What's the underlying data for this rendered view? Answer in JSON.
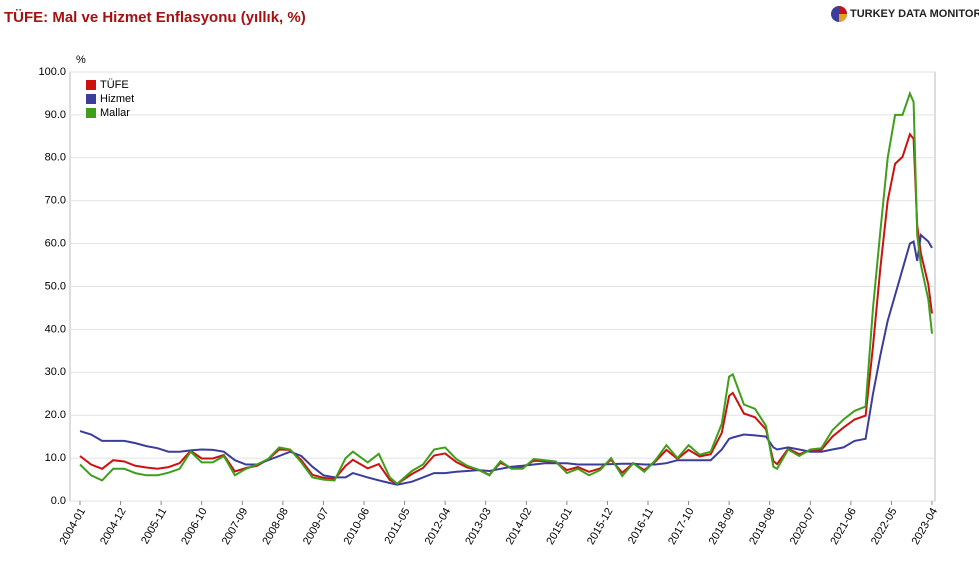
{
  "chart_data": {
    "type": "line",
    "title": "TÜFE: Mal ve Hizmet Enflasyonu (yıllık, %)",
    "source_logo": "TURKEY DATA MONITOR",
    "y_label": "%",
    "grid": true,
    "legend": "top-left",
    "ylim": [
      0,
      100
    ],
    "yticks": [
      {
        "value": 0,
        "label": "0.0"
      },
      {
        "value": 10,
        "label": "10.0"
      },
      {
        "value": 20,
        "label": "20.0"
      },
      {
        "value": 30,
        "label": "30.0"
      },
      {
        "value": 40,
        "label": "40.0"
      },
      {
        "value": 50,
        "label": "50.0"
      },
      {
        "value": 60,
        "label": "60.0"
      },
      {
        "value": 70,
        "label": "70.0"
      },
      {
        "value": 80,
        "label": "80.0"
      },
      {
        "value": 90,
        "label": "90.0"
      },
      {
        "value": 100,
        "label": "100.0"
      }
    ],
    "xticks": [
      "2004-01",
      "2004-12",
      "2005-11",
      "2006-10",
      "2007-09",
      "2008-08",
      "2009-07",
      "2010-06",
      "2011-05",
      "2012-04",
      "2013-03",
      "2014-02",
      "2015-01",
      "2015-12",
      "2016-11",
      "2017-10",
      "2018-09",
      "2019-08",
      "2020-07",
      "2021-06",
      "2022-05",
      "2023-04"
    ],
    "x": [
      "2004-01",
      "2004-04",
      "2004-07",
      "2004-10",
      "2005-01",
      "2005-04",
      "2005-07",
      "2005-10",
      "2006-01",
      "2006-04",
      "2006-07",
      "2006-10",
      "2007-01",
      "2007-04",
      "2007-07",
      "2007-10",
      "2008-01",
      "2008-04",
      "2008-07",
      "2008-10",
      "2009-01",
      "2009-04",
      "2009-07",
      "2009-10",
      "2010-01",
      "2010-03",
      "2010-07",
      "2010-10",
      "2011-01",
      "2011-03",
      "2011-07",
      "2011-10",
      "2012-01",
      "2012-04",
      "2012-07",
      "2012-10",
      "2013-01",
      "2013-04",
      "2013-07",
      "2013-10",
      "2014-01",
      "2014-04",
      "2014-07",
      "2014-10",
      "2015-01",
      "2015-04",
      "2015-07",
      "2015-10",
      "2016-01",
      "2016-04",
      "2016-07",
      "2016-10",
      "2017-01",
      "2017-04",
      "2017-07",
      "2017-10",
      "2018-01",
      "2018-04",
      "2018-07",
      "2018-09",
      "2018-10",
      "2019-01",
      "2019-04",
      "2019-07",
      "2019-09",
      "2019-10",
      "2020-01",
      "2020-04",
      "2020-07",
      "2020-10",
      "2021-01",
      "2021-04",
      "2021-07",
      "2021-10",
      "2021-12",
      "2022-02",
      "2022-04",
      "2022-06",
      "2022-08",
      "2022-10",
      "2022-11",
      "2022-12",
      "2023-01",
      "2023-03",
      "2023-04"
    ],
    "series": [
      {
        "name": "TÜFE",
        "color": "#cc1111",
        "values": [
          10.5,
          8.5,
          7.5,
          9.5,
          9.2,
          8.2,
          7.8,
          7.5,
          7.9,
          8.8,
          11.7,
          9.9,
          9.9,
          10.7,
          6.9,
          7.7,
          8.2,
          9.7,
          12.0,
          11.9,
          9.5,
          6.1,
          5.4,
          5.1,
          8.2,
          9.6,
          7.6,
          8.6,
          4.9,
          4.0,
          6.3,
          7.7,
          10.6,
          11.1,
          9.1,
          7.8,
          7.3,
          6.1,
          8.9,
          7.7,
          7.8,
          9.4,
          9.3,
          9.0,
          7.2,
          7.9,
          6.8,
          7.6,
          9.6,
          6.6,
          8.8,
          7.2,
          9.2,
          11.9,
          9.8,
          11.9,
          10.4,
          10.9,
          15.9,
          24.5,
          25.2,
          20.4,
          19.5,
          16.7,
          9.3,
          8.6,
          12.2,
          10.9,
          11.8,
          11.9,
          15.0,
          17.1,
          19.0,
          19.9,
          36.1,
          54.4,
          70.0,
          78.6,
          80.2,
          85.5,
          84.4,
          64.3,
          57.7,
          50.5,
          43.7
        ]
      },
      {
        "name": "Hizmet",
        "color": "#3a3d9a",
        "values": [
          16.3,
          15.5,
          14.0,
          14.0,
          14.0,
          13.5,
          12.8,
          12.3,
          11.5,
          11.5,
          11.8,
          12.0,
          11.9,
          11.5,
          9.5,
          8.5,
          8.5,
          9.5,
          10.5,
          11.5,
          10.5,
          8.0,
          6.0,
          5.5,
          5.5,
          6.5,
          5.5,
          4.8,
          4.2,
          3.8,
          4.5,
          5.5,
          6.5,
          6.5,
          6.8,
          7.0,
          7.2,
          7.0,
          7.5,
          8.0,
          8.2,
          8.5,
          8.8,
          8.8,
          8.8,
          8.5,
          8.5,
          8.5,
          8.6,
          8.7,
          8.7,
          8.5,
          8.5,
          8.8,
          9.5,
          9.5,
          9.5,
          9.5,
          12.0,
          14.5,
          14.8,
          15.5,
          15.3,
          15.0,
          12.5,
          12.0,
          12.5,
          12.0,
          11.5,
          11.5,
          12.0,
          12.5,
          14.0,
          14.5,
          25.0,
          34.0,
          42.0,
          48.0,
          54.0,
          60.0,
          60.5,
          56.0,
          62.0,
          60.5,
          59.0
        ]
      },
      {
        "name": "Mallar",
        "color": "#3f9e1a",
        "values": [
          8.5,
          6.0,
          4.8,
          7.5,
          7.5,
          6.5,
          6.0,
          6.0,
          6.6,
          7.5,
          11.5,
          9.0,
          9.0,
          10.5,
          6.0,
          7.5,
          8.5,
          9.8,
          12.5,
          12.0,
          9.0,
          5.5,
          5.0,
          4.8,
          10.0,
          11.5,
          9.0,
          11.0,
          5.5,
          4.0,
          7.0,
          8.5,
          12.0,
          12.5,
          9.8,
          8.2,
          7.3,
          6.0,
          9.3,
          7.5,
          7.5,
          9.8,
          9.5,
          9.2,
          6.5,
          7.5,
          6.0,
          7.2,
          10.0,
          5.8,
          8.8,
          6.8,
          9.5,
          13.0,
          10.0,
          13.0,
          10.8,
          11.5,
          18.0,
          29.0,
          29.5,
          22.5,
          21.5,
          17.5,
          8.0,
          7.5,
          12.0,
          10.5,
          12.0,
          12.3,
          16.5,
          19.0,
          21.0,
          22.0,
          45.0,
          63.0,
          80.0,
          90.0,
          90.0,
          95.0,
          93.0,
          62.0,
          55.0,
          47.0,
          39.0
        ]
      }
    ]
  }
}
